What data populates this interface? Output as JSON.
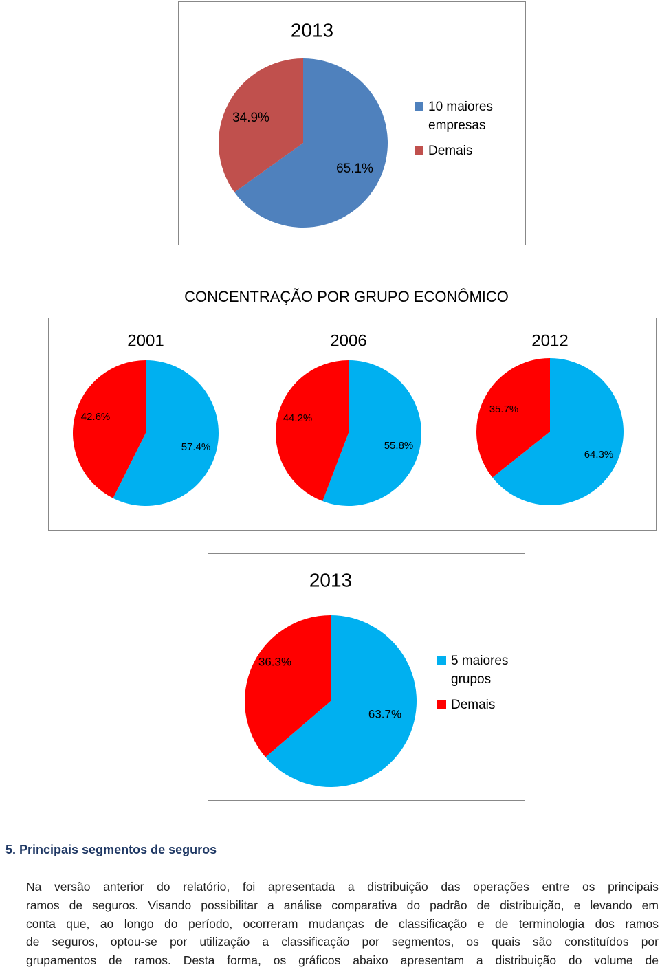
{
  "chart_data": [
    {
      "type": "pie",
      "title": "2013",
      "categories": [
        "10 maiores empresas",
        "Demais"
      ],
      "values": [
        65.1,
        34.9
      ],
      "value_labels": [
        "65.1%",
        "34.9%"
      ],
      "colors": [
        "#4f81bd",
        "#c0504d"
      ],
      "legend": "right"
    },
    {
      "type": "pie",
      "title": "2001",
      "values": [
        57.4,
        42.6
      ],
      "value_labels": [
        "57.4%",
        "42.6%"
      ],
      "colors": [
        "#00b0f0",
        "#ff0000"
      ]
    },
    {
      "type": "pie",
      "title": "2006",
      "values": [
        55.8,
        44.2
      ],
      "value_labels": [
        "55.8%",
        "44.2%"
      ],
      "colors": [
        "#00b0f0",
        "#ff0000"
      ]
    },
    {
      "type": "pie",
      "title": "2012",
      "values": [
        64.3,
        35.7
      ],
      "value_labels": [
        "64.3%",
        "35.7%"
      ],
      "colors": [
        "#00b0f0",
        "#ff0000"
      ]
    },
    {
      "type": "pie",
      "title": "2013",
      "categories": [
        "5 maiores grupos",
        "Demais"
      ],
      "values": [
        63.7,
        36.3
      ],
      "value_labels": [
        "63.7%",
        "36.3%"
      ],
      "colors": [
        "#00b0f0",
        "#ff0000"
      ],
      "legend": "right"
    }
  ],
  "group_title": "CONCENTRAÇÃO POR GRUPO ECONÔMICO",
  "section_heading": "5. Principais segmentos de seguros",
  "paragraph_lines": [
    "Na versão anterior do relatório, foi apresentada a distribuição das operações entre os principais",
    "ramos de seguros. Visando possibilitar a análise comparativa do padrão de distribuição, e levando em",
    "conta que, ao longo do período, ocorreram mudanças de classificação e de terminologia dos ramos",
    "de seguros, optou-se por utilização a classificação por segmentos, os quais são constituídos por",
    "grupamentos de ramos. Desta forma, os gráficos abaixo apresentam a distribuição do volume de"
  ]
}
